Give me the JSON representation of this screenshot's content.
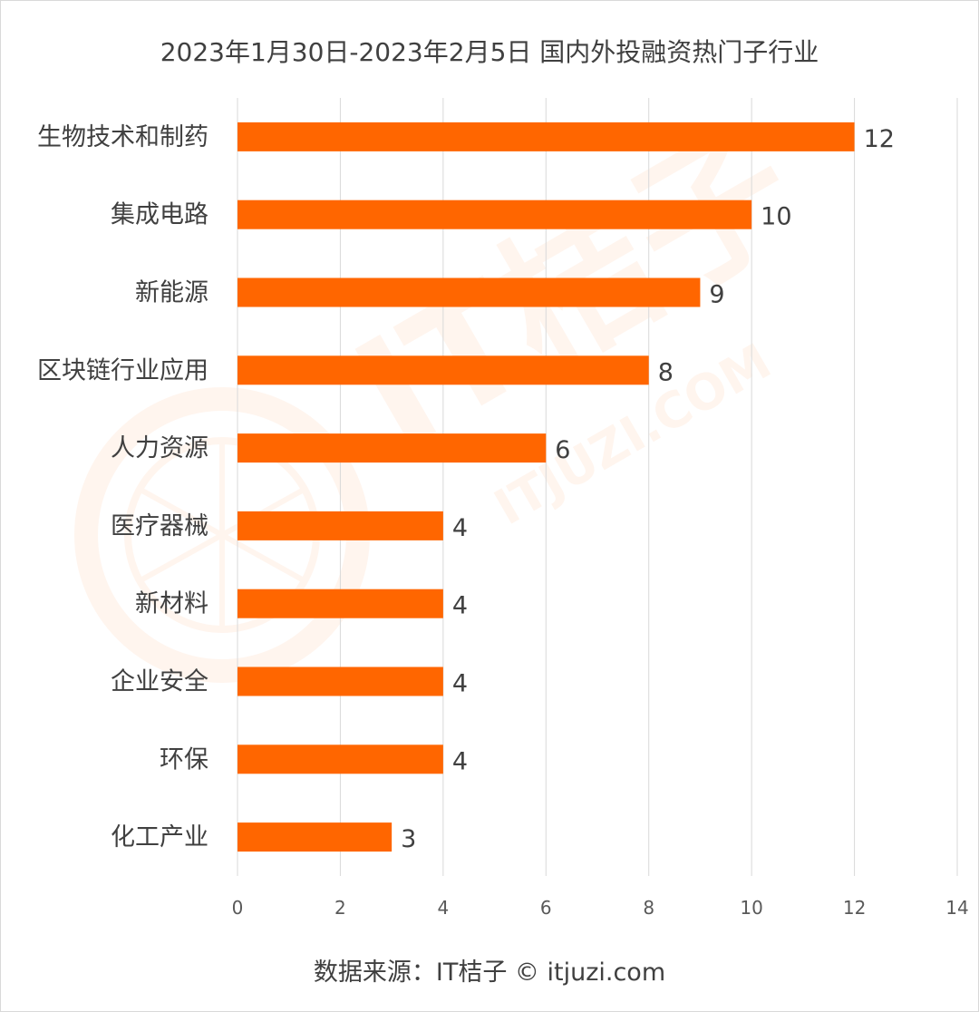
{
  "title": "2023年1月30日-2023年2月5日 国内外投融资热门子行业",
  "source": "数据来源：IT桔子 © itjuzi.com",
  "watermark": {
    "brand": "IT桔子",
    "url": "ITJUZI.COM"
  },
  "colors": {
    "bar": "#ff6600",
    "grid": "#d9d9d9",
    "text": "#404040",
    "watermark": "#ff6600"
  },
  "chart_data": {
    "type": "bar",
    "orientation": "horizontal",
    "title": "2023年1月30日-2023年2月5日 国内外投融资热门子行业",
    "categories": [
      "生物技术和制药",
      "集成电路",
      "新能源",
      "区块链行业应用",
      "人力资源",
      "医疗器械",
      "新材料",
      "企业安全",
      "环保",
      "化工产业"
    ],
    "values": [
      12,
      10,
      9,
      8,
      6,
      4,
      4,
      4,
      4,
      3
    ],
    "xlim": [
      0,
      14
    ],
    "xticks": [
      0,
      2,
      4,
      6,
      8,
      10,
      12,
      14
    ],
    "grid": "vertical",
    "data_labels": true
  }
}
